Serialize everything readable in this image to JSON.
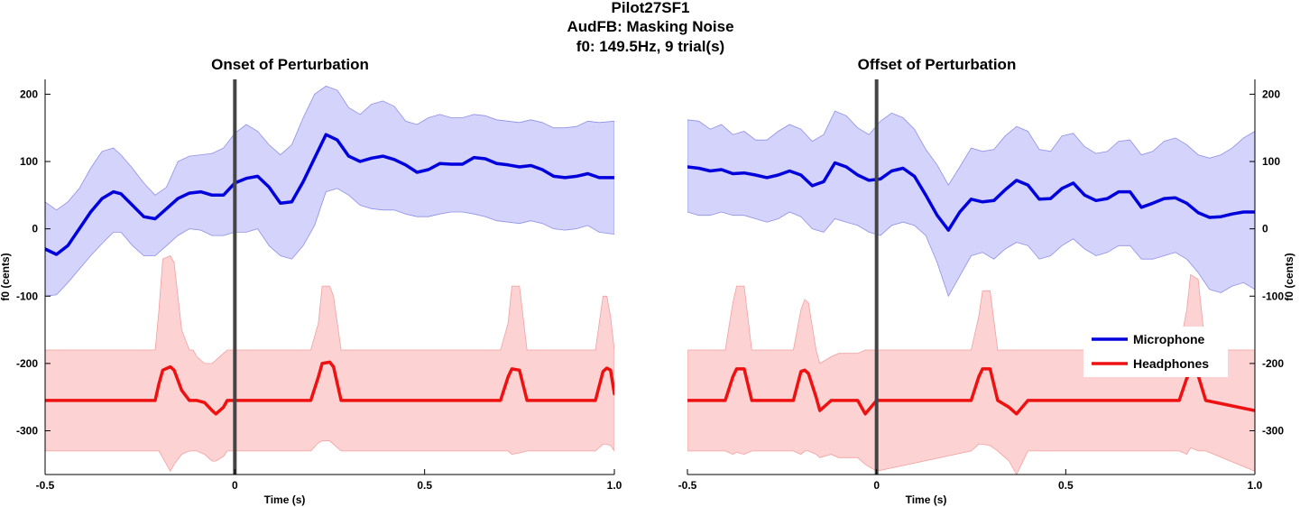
{
  "figure": {
    "title_lines": [
      "Pilot27SF1",
      "AudFB: Masking Noise",
      "f0: 149.5Hz, 9 trial(s)"
    ]
  },
  "legend": {
    "entries": [
      {
        "label": "Microphone",
        "color": "#0000dd"
      },
      {
        "label": "Headphones",
        "color": "#ee1111"
      }
    ]
  },
  "colors": {
    "mic_line": "#0000dd",
    "mic_band": "#d3d3fb",
    "mic_band_edge": "#8f8fe8",
    "hp_line": "#ee1111",
    "hp_band": "#fdd2d2",
    "hp_band_edge": "#f2a0a0",
    "event_line": "#444444"
  },
  "chart_data": [
    {
      "type": "line",
      "title": "Onset of Perturbation",
      "xlabel": "Time (s)",
      "ylabel": "f0 (cents)",
      "xlim": [
        -0.5,
        1.0
      ],
      "ylim": [
        -365,
        222
      ],
      "xticks": [
        -0.5,
        0,
        0.5,
        1.0
      ],
      "xtick_labels": [
        "-0.5",
        "0",
        "0.5",
        "1.0"
      ],
      "yticks": [
        -300,
        -200,
        -100,
        0,
        100,
        200
      ],
      "ytick_labels": [
        "-300",
        "-200",
        "-100",
        "0",
        "100",
        "200"
      ],
      "event_x": 0,
      "series": [
        {
          "name": "Microphone",
          "x": [
            -0.5,
            -0.47,
            -0.44,
            -0.41,
            -0.38,
            -0.35,
            -0.32,
            -0.3,
            -0.27,
            -0.24,
            -0.21,
            -0.18,
            -0.15,
            -0.12,
            -0.09,
            -0.06,
            -0.03,
            0,
            0.03,
            0.06,
            0.09,
            0.12,
            0.15,
            0.18,
            0.21,
            0.24,
            0.27,
            0.3,
            0.33,
            0.36,
            0.39,
            0.42,
            0.45,
            0.48,
            0.51,
            0.54,
            0.57,
            0.6,
            0.63,
            0.66,
            0.69,
            0.72,
            0.75,
            0.78,
            0.81,
            0.84,
            0.87,
            0.9,
            0.93,
            0.96,
            1.0
          ],
          "y": [
            -30,
            -38,
            -25,
            0,
            25,
            45,
            55,
            52,
            35,
            18,
            15,
            30,
            45,
            53,
            55,
            50,
            50,
            68,
            75,
            78,
            62,
            38,
            40,
            70,
            105,
            140,
            132,
            108,
            100,
            105,
            108,
            103,
            95,
            84,
            88,
            97,
            96,
            96,
            106,
            104,
            97,
            95,
            92,
            94,
            88,
            78,
            76,
            78,
            82,
            76,
            76
          ],
          "upper": [
            40,
            28,
            40,
            60,
            90,
            115,
            120,
            110,
            90,
            68,
            50,
            62,
            100,
            108,
            110,
            112,
            120,
            142,
            155,
            145,
            125,
            110,
            125,
            165,
            200,
            212,
            206,
            180,
            170,
            185,
            190,
            182,
            160,
            155,
            165,
            170,
            165,
            165,
            170,
            168,
            162,
            160,
            158,
            162,
            158,
            150,
            150,
            152,
            160,
            158,
            160
          ],
          "lower": [
            -100,
            -98,
            -80,
            -60,
            -40,
            -22,
            -5,
            -5,
            -25,
            -40,
            -40,
            -25,
            -10,
            0,
            -2,
            -10,
            -10,
            -5,
            -5,
            0,
            -25,
            -40,
            -45,
            -25,
            5,
            55,
            60,
            50,
            35,
            30,
            28,
            28,
            22,
            18,
            18,
            22,
            25,
            25,
            22,
            18,
            12,
            10,
            8,
            12,
            8,
            0,
            -2,
            0,
            5,
            -5,
            -8
          ]
        },
        {
          "name": "Headphones",
          "x": [
            -0.5,
            -0.21,
            -0.2,
            -0.19,
            -0.17,
            -0.16,
            -0.14,
            -0.12,
            -0.11,
            -0.1,
            -0.08,
            -0.06,
            -0.05,
            -0.03,
            -0.02,
            0,
            0.1,
            0.2,
            0.22,
            0.23,
            0.25,
            0.26,
            0.28,
            0.5,
            0.7,
            0.72,
            0.73,
            0.75,
            0.77,
            0.95,
            0.97,
            0.98,
            0.99,
            1.0
          ],
          "y": [
            -255,
            -255,
            -230,
            -210,
            -205,
            -210,
            -240,
            -255,
            -255,
            -255,
            -258,
            -270,
            -275,
            -265,
            -255,
            -255,
            -255,
            -255,
            -220,
            -200,
            -198,
            -205,
            -255,
            -255,
            -255,
            -220,
            -208,
            -210,
            -255,
            -255,
            -212,
            -207,
            -210,
            -245
          ],
          "upper": [
            -180,
            -180,
            -120,
            -45,
            -40,
            -50,
            -150,
            -180,
            -180,
            -190,
            -200,
            -200,
            -195,
            -185,
            -180,
            -180,
            -180,
            -180,
            -140,
            -85,
            -85,
            -100,
            -180,
            -180,
            -180,
            -140,
            -85,
            -85,
            -180,
            -180,
            -100,
            -100,
            -130,
            -180
          ],
          "lower": [
            -330,
            -330,
            -330,
            -340,
            -360,
            -350,
            -335,
            -330,
            -330,
            -330,
            -335,
            -345,
            -345,
            -338,
            -330,
            -330,
            -330,
            -330,
            -318,
            -315,
            -315,
            -320,
            -330,
            -330,
            -330,
            -330,
            -335,
            -333,
            -330,
            -330,
            -320,
            -320,
            -322,
            -330
          ]
        }
      ]
    },
    {
      "type": "line",
      "title": "Offset of Perturbation",
      "xlabel": "Time (s)",
      "ylabel": "f0 (cents)",
      "xlim": [
        -0.5,
        1.0
      ],
      "ylim": [
        -365,
        222
      ],
      "xticks": [
        -0.5,
        0,
        0.5,
        1.0
      ],
      "xtick_labels": [
        "-0.5",
        "0",
        "0.5",
        "1.0"
      ],
      "yticks": [
        -300,
        -200,
        -100,
        0,
        100,
        200
      ],
      "ytick_labels": [
        "-300",
        "-200",
        "-100",
        "0",
        "100",
        "200"
      ],
      "event_x": 0,
      "series": [
        {
          "name": "Microphone",
          "x": [
            -0.5,
            -0.47,
            -0.44,
            -0.41,
            -0.38,
            -0.35,
            -0.32,
            -0.29,
            -0.26,
            -0.23,
            -0.2,
            -0.17,
            -0.14,
            -0.11,
            -0.08,
            -0.05,
            -0.02,
            0.01,
            0.04,
            0.07,
            0.1,
            0.13,
            0.16,
            0.19,
            0.22,
            0.25,
            0.28,
            0.31,
            0.34,
            0.37,
            0.4,
            0.43,
            0.46,
            0.49,
            0.52,
            0.55,
            0.58,
            0.61,
            0.64,
            0.67,
            0.7,
            0.73,
            0.76,
            0.79,
            0.82,
            0.85,
            0.88,
            0.91,
            0.94,
            0.97,
            1.0
          ],
          "y": [
            92,
            90,
            86,
            88,
            82,
            83,
            80,
            76,
            80,
            86,
            80,
            64,
            70,
            98,
            92,
            80,
            72,
            74,
            86,
            90,
            78,
            50,
            20,
            -2,
            25,
            44,
            40,
            42,
            58,
            72,
            65,
            44,
            45,
            60,
            68,
            50,
            42,
            45,
            55,
            55,
            32,
            38,
            45,
            46,
            38,
            24,
            17,
            18,
            22,
            25,
            25
          ],
          "upper": [
            162,
            160,
            148,
            155,
            140,
            145,
            132,
            132,
            145,
            155,
            148,
            130,
            140,
            175,
            168,
            150,
            140,
            160,
            172,
            165,
            148,
            118,
            95,
            65,
            92,
            120,
            115,
            118,
            138,
            152,
            145,
            118,
            115,
            138,
            142,
            122,
            112,
            115,
            130,
            132,
            110,
            115,
            130,
            135,
            125,
            110,
            105,
            110,
            120,
            135,
            145
          ],
          "lower": [
            25,
            20,
            20,
            25,
            20,
            20,
            15,
            10,
            15,
            25,
            18,
            0,
            -5,
            15,
            10,
            5,
            -5,
            -10,
            5,
            10,
            5,
            -10,
            -50,
            -100,
            -70,
            -40,
            -35,
            -45,
            -30,
            -20,
            -25,
            -45,
            -40,
            -25,
            -15,
            -30,
            -40,
            -35,
            -25,
            -25,
            -45,
            -45,
            -40,
            -35,
            -45,
            -65,
            -90,
            -95,
            -85,
            -80,
            -90
          ]
        },
        {
          "name": "Headphones",
          "x": [
            -0.5,
            -0.4,
            -0.38,
            -0.37,
            -0.35,
            -0.33,
            -0.22,
            -0.2,
            -0.19,
            -0.18,
            -0.16,
            -0.15,
            -0.12,
            -0.1,
            -0.05,
            -0.03,
            0,
            0.25,
            0.27,
            0.28,
            0.3,
            0.32,
            0.35,
            0.37,
            0.4,
            0.8,
            0.82,
            0.83,
            0.85,
            0.87,
            1.0
          ],
          "y": [
            -255,
            -255,
            -220,
            -208,
            -208,
            -255,
            -255,
            -212,
            -210,
            -215,
            -250,
            -270,
            -255,
            -255,
            -255,
            -275,
            -255,
            -255,
            -220,
            -208,
            -208,
            -255,
            -265,
            -275,
            -255,
            -255,
            -222,
            -213,
            -218,
            -255,
            -270
          ],
          "upper": [
            -180,
            -180,
            -110,
            -85,
            -85,
            -180,
            -180,
            -120,
            -105,
            -110,
            -180,
            -200,
            -190,
            -185,
            -185,
            -180,
            -180,
            -180,
            -130,
            -92,
            -92,
            -180,
            -180,
            -180,
            -180,
            -180,
            -120,
            -68,
            -75,
            -180,
            -180
          ],
          "lower": [
            -330,
            -330,
            -335,
            -332,
            -335,
            -330,
            -330,
            -335,
            -330,
            -330,
            -335,
            -340,
            -335,
            -340,
            -340,
            -350,
            -360,
            -330,
            -320,
            -320,
            -322,
            -330,
            -345,
            -365,
            -330,
            -330,
            -335,
            -325,
            -330,
            -330,
            -360
          ]
        }
      ]
    }
  ]
}
